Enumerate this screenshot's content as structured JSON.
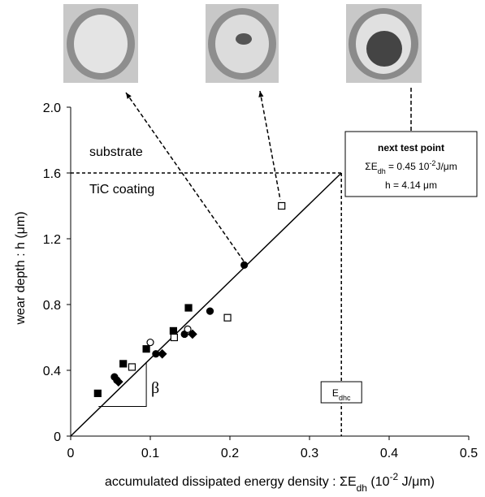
{
  "chart_data": {
    "type": "scatter",
    "x_label": {
      "main": "accumulated dissipated energy density : ΣE",
      "sub": "dh",
      "unit_open": " (10",
      "sup": "-2",
      "unit_close": " J/μm)"
    },
    "y_label": "wear depth : h (μm)",
    "xlim": [
      0,
      0.5
    ],
    "xticks": [
      0,
      0.1,
      0.2,
      0.3,
      0.4,
      0.5
    ],
    "ylim": [
      0,
      2
    ],
    "yticks": [
      0,
      0.4,
      0.8,
      1.2,
      1.6,
      {
        "value": 2,
        "label": "2.0"
      }
    ],
    "series": [
      {
        "marker": "square",
        "filled": true,
        "color": "#000000",
        "x": [
          0.034,
          0.066,
          0.095,
          0.129,
          0.148
        ],
        "values": [
          0.26,
          0.44,
          0.53,
          0.64,
          0.78
        ]
      },
      {
        "marker": "square",
        "filled": false,
        "color": "#000000",
        "x": [
          0.077,
          0.13,
          0.197,
          0.265
        ],
        "values": [
          0.42,
          0.6,
          0.72,
          1.4
        ]
      },
      {
        "marker": "circle",
        "filled": true,
        "color": "#000000",
        "x": [
          0.055,
          0.058,
          0.107,
          0.143,
          0.175,
          0.218
        ],
        "values": [
          0.36,
          0.34,
          0.5,
          0.62,
          0.76,
          1.04
        ]
      },
      {
        "marker": "circle",
        "filled": false,
        "color": "#000000",
        "x": [
          0.1,
          0.147
        ],
        "values": [
          0.57,
          0.65
        ]
      },
      {
        "marker": "diamond",
        "filled": true,
        "color": "#000000",
        "x": [
          0.06,
          0.115,
          0.153
        ],
        "values": [
          0.33,
          0.5,
          0.62
        ]
      }
    ],
    "fit_line": {
      "x": [
        0,
        0.34
      ],
      "values": [
        0,
        1.6
      ]
    },
    "critical_point": {
      "x": 0.34,
      "value": 1.6,
      "label_main": "E",
      "label_sub": "dhc"
    },
    "layer_labels": {
      "upper": "substrate",
      "lower": "TiC coating"
    },
    "slope_label": "β",
    "next_test_point": {
      "title": "next test point",
      "energy_main": "ΣE",
      "energy_sub": "dh",
      "energy_text": " = 0.45 10",
      "energy_sup": "-2",
      "energy_unit": "J/μm",
      "depth": "h = 4.14 μm"
    }
  }
}
